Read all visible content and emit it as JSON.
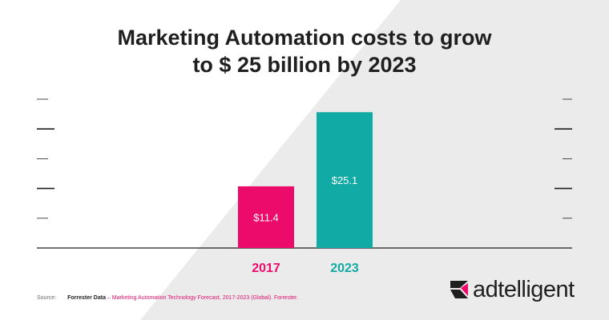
{
  "title_lines": [
    "Marketing Automation costs to grow",
    "to $ 25 billion by 2023"
  ],
  "source": {
    "label": "Source:",
    "publisher": "Forrester Data",
    "detail": " – Marketing Automation Technology Forecast, 2017-2023 (Global). Forrester."
  },
  "brand": "adtelligent",
  "colors": {
    "bar_2017": "#ec0b6b",
    "bar_2023": "#11aaa4",
    "text": "#1f1f1f",
    "background_shade": "#ebebeb"
  },
  "chart_data": {
    "type": "bar",
    "categories": [
      "2017",
      "2023"
    ],
    "values": [
      11.4,
      25.1
    ],
    "value_labels": [
      "$11.4",
      "$25.1"
    ],
    "ylim": [
      0,
      27.5
    ],
    "grid": false
  }
}
